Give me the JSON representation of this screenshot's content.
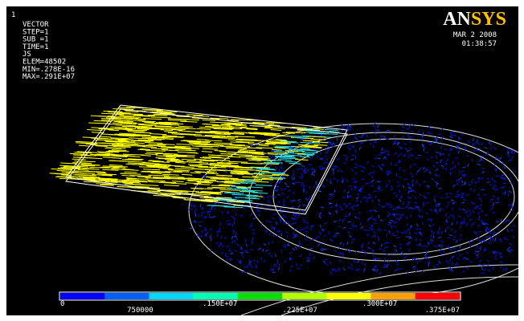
{
  "window_number": "1",
  "info": [
    "VECTOR",
    "STEP=1",
    "SUB =1",
    "TIME=1",
    "JS",
    "ELEM=48502",
    "MIN=.278E-16",
    "MAX=.291E+07"
  ],
  "logo": "ANSYS",
  "date": "MAR  2 2008",
  "time": "01:38:57",
  "legend": {
    "colors": [
      "#0000ff",
      "#0060ff",
      "#00d8ff",
      "#00ffb0",
      "#00e000",
      "#b0ff00",
      "#ffff00",
      "#ffa000",
      "#ff0000"
    ],
    "labels": [
      "0",
      "750000",
      ".150E+07",
      ".225E+07",
      ".300E+07",
      ".375E+07"
    ]
  }
}
